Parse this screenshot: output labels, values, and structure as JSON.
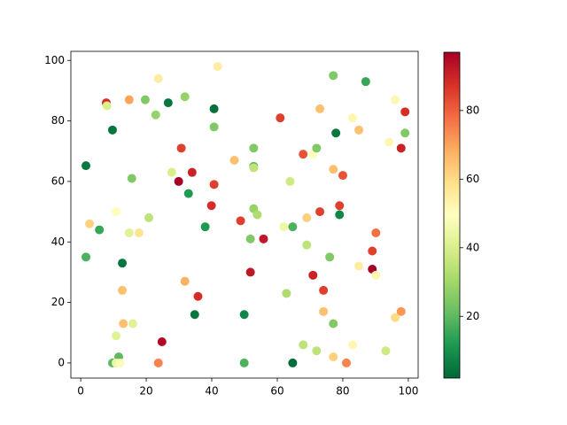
{
  "chart_data": {
    "type": "scatter",
    "colormap": "RdYlGn_r",
    "x": [
      1.6,
      1.6,
      2.7,
      5.7,
      7.8,
      8,
      9.7,
      10.8,
      12.7,
      12.7,
      13,
      10.8,
      9.7,
      11.6,
      10.8,
      12,
      14.8,
      14.8,
      15.6,
      15.9,
      17.8,
      19.7,
      20.8,
      22.9,
      23.7,
      23.7,
      24.8,
      26.7,
      27.8,
      29.9,
      30.7,
      31.8,
      31.8,
      32.9,
      34,
      34.8,
      35.8,
      38,
      39.9,
      40.7,
      40.7,
      40.7,
      41.8,
      46.9,
      48.8,
      49.9,
      49.9,
      51.8,
      51.8,
      52.8,
      52.8,
      52.8,
      52.8,
      53.9,
      55.8,
      60.9,
      62,
      62.8,
      64.7,
      63.9,
      64.7,
      67.9,
      67.9,
      69,
      69,
      70.9,
      70.9,
      72,
      72,
      73,
      73,
      74.1,
      74.1,
      76,
      77.1,
      77.1,
      77.1,
      77.1,
      77.9,
      79,
      79,
      80,
      81.1,
      83,
      83,
      84.9,
      84.9,
      87,
      89,
      89,
      90.1,
      90.1,
      93.1,
      94.1,
      96,
      96,
      97.8,
      97.8,
      99,
      99
    ],
    "y": [
      65.2,
      35,
      46,
      44,
      86,
      85,
      77,
      50,
      33,
      24,
      13,
      9,
      0,
      2,
      0,
      0,
      87,
      43,
      61,
      13,
      43,
      87,
      48,
      82,
      94,
      0,
      7,
      86,
      63,
      60,
      71,
      88,
      27,
      56,
      63,
      16,
      22,
      45,
      52,
      59,
      78,
      84,
      98,
      67,
      47,
      16,
      0,
      30,
      41,
      71,
      65,
      64.5,
      51,
      49,
      41,
      81,
      45,
      23,
      45,
      60,
      0,
      69,
      6,
      48,
      39,
      29,
      69,
      71,
      4,
      84,
      50,
      24,
      17,
      35,
      95,
      13,
      64,
      2,
      76,
      52,
      49,
      62,
      0,
      81,
      6,
      77,
      32,
      93,
      31,
      37,
      29,
      43,
      4,
      73,
      87,
      15,
      71,
      17,
      83,
      76
    ],
    "c": [
      5,
      18,
      62,
      15,
      88,
      40,
      5,
      50,
      5,
      65,
      65,
      42,
      20,
      20,
      45,
      48,
      70,
      42,
      25,
      42,
      58,
      25,
      35,
      28,
      55,
      75,
      95,
      5,
      40,
      97,
      85,
      28,
      68,
      12,
      90,
      5,
      88,
      12,
      88,
      85,
      25,
      4,
      55,
      65,
      85,
      8,
      18,
      92,
      25,
      25,
      20,
      35,
      28,
      32,
      92,
      85,
      45,
      32,
      18,
      38,
      3,
      82,
      35,
      62,
      35,
      90,
      50,
      25,
      35,
      65,
      85,
      85,
      65,
      25,
      25,
      25,
      65,
      62,
      5,
      85,
      8,
      82,
      75,
      52,
      52,
      65,
      55,
      15,
      97,
      85,
      52,
      78,
      38,
      52,
      52,
      60,
      90,
      72,
      88,
      25
    ],
    "clim": [
      2,
      97
    ],
    "xlim": [
      -3,
      103
    ],
    "ylim": [
      -5,
      103
    ],
    "xticks": [
      0,
      20,
      40,
      60,
      80,
      100
    ],
    "yticks": [
      0,
      20,
      40,
      60,
      80,
      100
    ],
    "cticks": [
      20,
      40,
      60,
      80
    ]
  }
}
